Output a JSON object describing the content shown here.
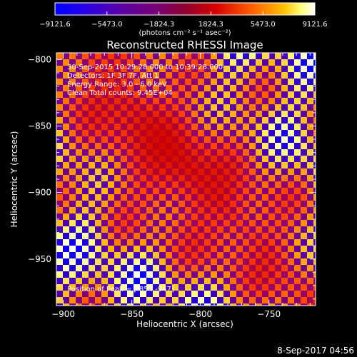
{
  "chart_data": {
    "type": "heatmap",
    "title": "Reconstructed RHESSI Image",
    "xlabel": "Heliocentric X (arcsec)",
    "ylabel": "Heliocentric Y (arcsec)",
    "xlim": [
      -905,
      -716
    ],
    "ylim": [
      -985,
      -795
    ],
    "x_ticks": [
      -900,
      -850,
      -800,
      -750
    ],
    "y_ticks": [
      -800,
      -850,
      -900,
      -950
    ],
    "x_tick_labels": [
      "−900",
      "−850",
      "−800",
      "−750"
    ],
    "y_tick_labels": [
      "−800",
      "−850",
      "−900",
      "−950"
    ],
    "colorbar": {
      "range": [
        -9121.6,
        9121.6
      ],
      "ticks": [
        -9121.6,
        -5473.0,
        -1824.3,
        1824.3,
        5473.0,
        9121.6
      ],
      "tick_labels": [
        "−9121.6",
        "−5473.0",
        "−1824.3",
        "1824.3",
        "5473.0",
        "9121.6"
      ],
      "unit_label": "(photons cm⁻² s⁻¹ asec⁻²)"
    },
    "annotations": [
      "30-Sep-2015 10:29:28.000 to 10:39:28.000",
      "Detectors: 1F 3F 7F, Att 1",
      "Energy Range: 3.0 - 6.0 keV",
      "Clean    Total counts: 9.45E+04"
    ],
    "peak": {
      "label": "Position of Peak = [-854,-947]",
      "x": -854,
      "y": -947
    },
    "grid": false,
    "legend": "none"
  },
  "footer": {
    "timestamp": "8-Sep-2017 04:56"
  },
  "colors": {
    "background": "#000000",
    "text": "#ffffff",
    "colormap": [
      "#0000ff",
      "#3300cc",
      "#660099",
      "#990066",
      "#cc0000",
      "#ff4400",
      "#ffaa00",
      "#ffff88",
      "#ffffff"
    ]
  }
}
